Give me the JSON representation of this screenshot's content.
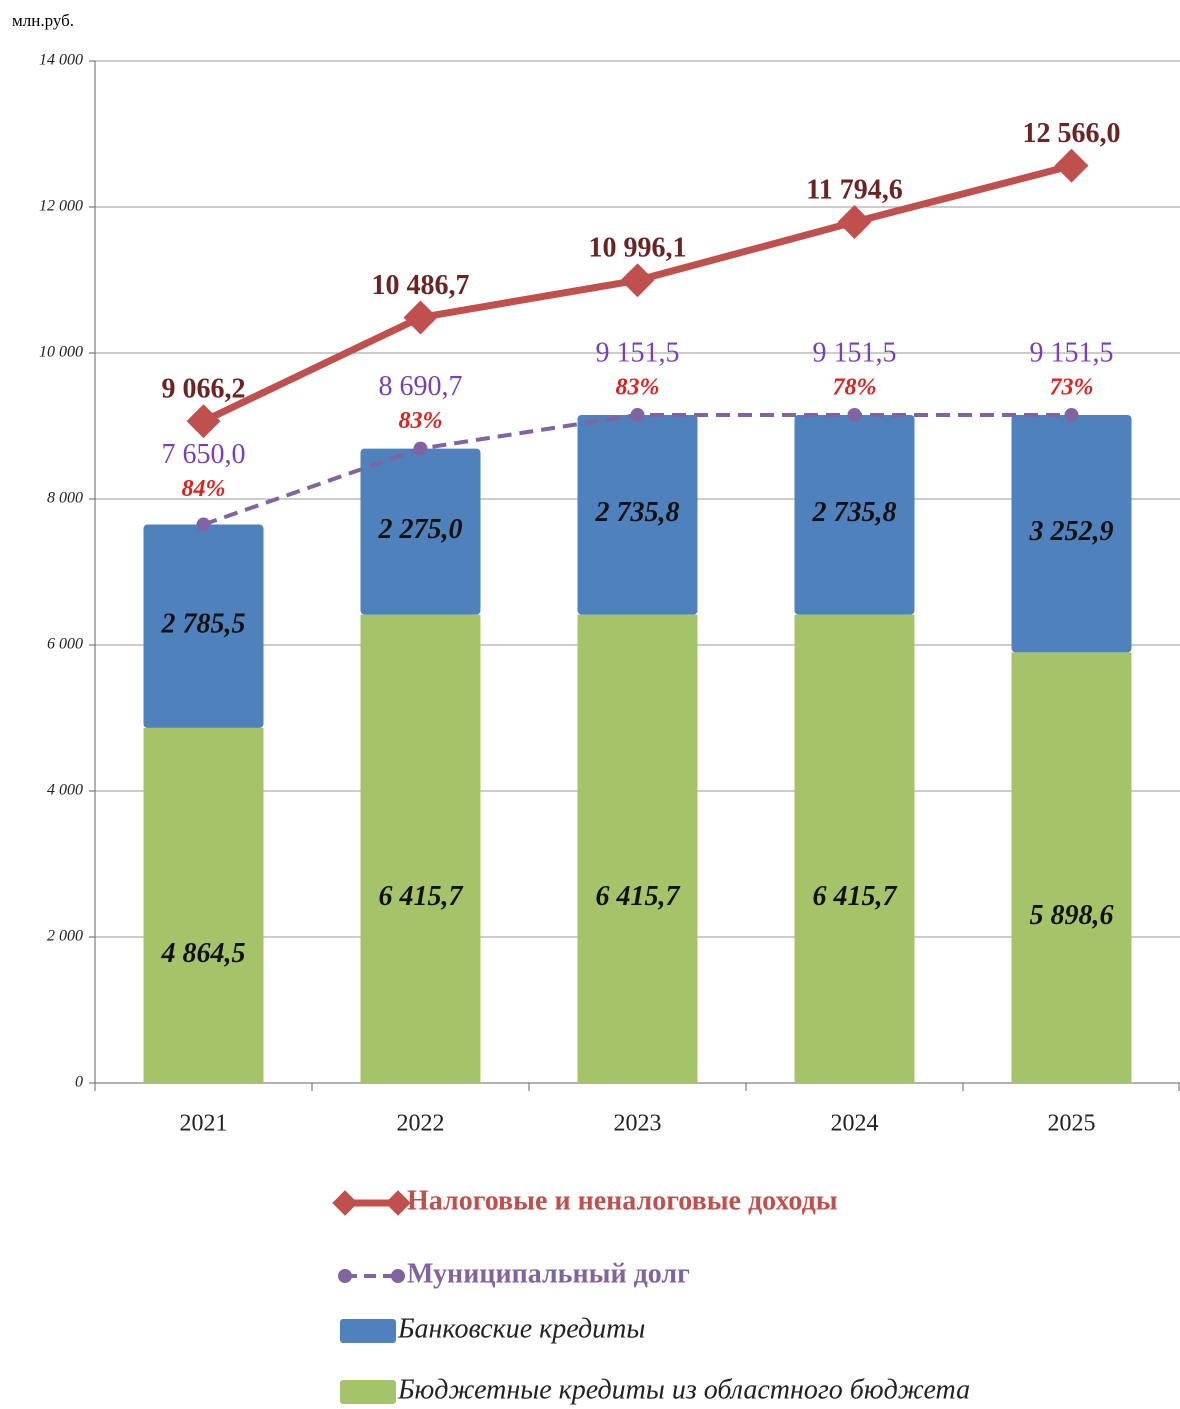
{
  "chart_data": {
    "type": "bar",
    "stacked": true,
    "y_label": "млн.руб.",
    "categories": [
      "2021",
      "2022",
      "2023",
      "2024",
      "2025"
    ],
    "ylim": [
      0,
      14000
    ],
    "yticks": [
      0,
      {
        "value": 2000,
        "label": "2 000"
      },
      {
        "value": 4000,
        "label": "4 000"
      },
      {
        "value": 6000,
        "label": "6 000"
      },
      {
        "value": 8000,
        "label": "8 000"
      },
      {
        "value": 10000,
        "label": "10 000"
      },
      {
        "value": 12000,
        "label": "12 000"
      },
      {
        "value": 14000,
        "label": "14 000"
      }
    ],
    "grid": true,
    "series": [
      {
        "name": "Бюджетные кредиты из областного бюджета",
        "color": "#a5c46a",
        "values": [
          4864.5,
          6415.7,
          6415.7,
          6415.7,
          5898.6
        ],
        "value_labels": [
          "4 864,5",
          "6 415,7",
          "6 415,7",
          "6 415,7",
          "5 898,6"
        ]
      },
      {
        "name": "Банковские кредиты",
        "color": "#4f81bd",
        "values": [
          2785.5,
          2275.0,
          2735.8,
          2735.8,
          3252.9
        ],
        "value_labels": [
          "2 785,5",
          "2 275,0",
          "2 735,8",
          "2 735,8",
          "3 252,9"
        ]
      },
      {
        "name": "Налоговые и неналоговые доходы",
        "type": "line",
        "color": "#c0504d",
        "values": [
          9066.2,
          10486.7,
          10996.1,
          11794.6,
          12566.0
        ],
        "value_labels": [
          "9 066,2",
          "10 486,7",
          "10 996,1",
          "11 794,6",
          "12 566,0"
        ]
      },
      {
        "name": "Муниципальный долг",
        "type": "line",
        "dashed": true,
        "color": "#8064a2",
        "values": [
          7650.0,
          8690.7,
          9151.5,
          9151.5,
          9151.5
        ],
        "value_labels": [
          "7 650,0",
          "8 690,7",
          "9 151,5",
          "9 151,5",
          "9 151,5"
        ]
      }
    ],
    "debt_share": {
      "values": [
        84,
        83,
        83,
        78,
        73
      ],
      "value_labels": [
        "84%",
        "83%",
        "83%",
        "78%",
        "73%"
      ]
    }
  }
}
